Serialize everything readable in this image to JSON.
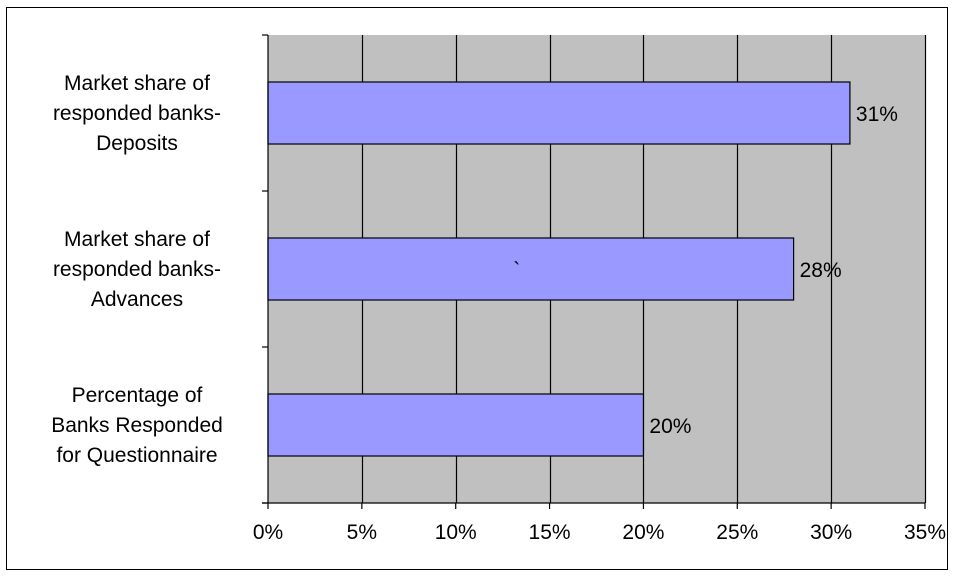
{
  "chart_data": {
    "type": "bar",
    "orientation": "horizontal",
    "categories": [
      [
        "Market share of",
        "responded banks-",
        "Deposits"
      ],
      [
        "Market share of",
        "responded banks-",
        "Advances"
      ],
      [
        "Percentage  of",
        "Banks Responded",
        "for Questionnaire"
      ]
    ],
    "values": [
      0.31,
      0.28,
      0.2
    ],
    "data_labels": [
      "31%",
      "28%",
      "20%"
    ],
    "xlim": [
      0,
      0.35
    ],
    "x_ticks": [
      0,
      0.05,
      0.1,
      0.15,
      0.2,
      0.25,
      0.3,
      0.35
    ],
    "x_tick_labels": [
      "0%",
      "5%",
      "10%",
      "15%",
      "20%",
      "25%",
      "30%",
      "35%"
    ],
    "grid": true,
    "colors": {
      "bar_fill": "#9999ff",
      "bar_stroke": "#000000",
      "plot_background": "#c0c0c0",
      "grid": "#000000"
    },
    "stray_mark": "`"
  }
}
